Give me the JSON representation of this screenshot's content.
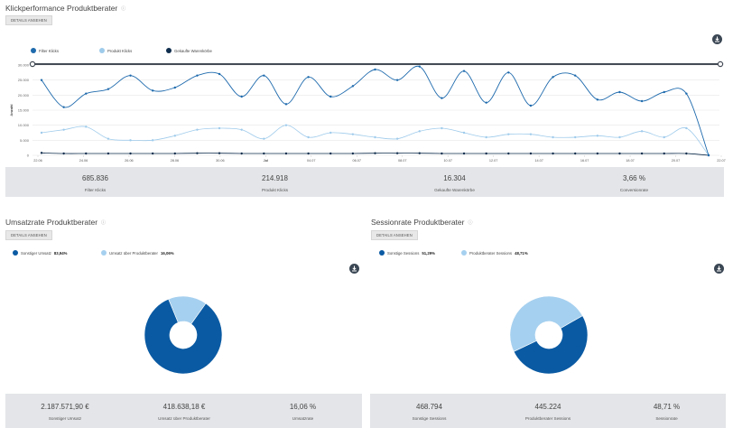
{
  "clicks": {
    "title": "Klickperformance Produktberater",
    "info": "ⓘ",
    "details_label": "DETAILS ANSEHEN",
    "legend": [
      {
        "label": "Filter Klicks",
        "color": "#1e6aad"
      },
      {
        "label": "Produkt Klicks",
        "color": "#9fcbeb"
      },
      {
        "label": "Gekaufte Warenkörbe",
        "color": "#0f2d4d"
      }
    ],
    "stats": [
      {
        "value": "685.836",
        "label": "Filter Klicks"
      },
      {
        "value": "214.918",
        "label": "Produkt Klicks"
      },
      {
        "value": "16.304",
        "label": "Gekaufte Warenkörbe"
      },
      {
        "value": "3,66 %",
        "label": "Conversionrate"
      }
    ]
  },
  "umsatz": {
    "title": "Umsatzrate Produktberater",
    "info": "ⓘ",
    "details_label": "DETAILS ANSEHEN",
    "legend": [
      {
        "label": "Sonstiger Umsatz",
        "pct": "83,94%",
        "color": "#0a5aa3"
      },
      {
        "label": "Umsatz über Produktberater",
        "pct": "16,06%",
        "color": "#a6d0ef"
      }
    ],
    "stats": [
      {
        "value": "2.187.571,90 €",
        "label": "Sonstiger Umsatz"
      },
      {
        "value": "418.638,18 €",
        "label": "Umsatz über Produktberater"
      },
      {
        "value": "16,06 %",
        "label": "Umsatzrate"
      }
    ]
  },
  "sessions": {
    "title": "Sessionrate Produktberater",
    "info": "ⓘ",
    "details_label": "DETAILS ANSEHEN",
    "legend": [
      {
        "label": "Sonstige Sessions",
        "pct": "51,29%",
        "color": "#0a5aa3"
      },
      {
        "label": "Produktberater Sessions",
        "pct": "48,71%",
        "color": "#a6d0ef"
      }
    ],
    "stats": [
      {
        "value": "468.794",
        "label": "Sonstige Sessions"
      },
      {
        "value": "445.224",
        "label": "Produktberater Sessions"
      },
      {
        "value": "48,71 %",
        "label": "Sessionrate"
      }
    ]
  },
  "chart_data": [
    {
      "type": "line",
      "ylabel": "Anzahl",
      "ylim": [
        0,
        30000
      ],
      "yticks": [
        "0",
        "5.000",
        "10.000",
        "15.000",
        "20.000",
        "25.000",
        "30.000"
      ],
      "x_tick_labels": [
        "22.06",
        "24.06",
        "26.06",
        "28.06",
        "30.06",
        "Jul",
        "04.07",
        "06.07",
        "08.07",
        "10.07",
        "12.07",
        "14.07",
        "16.07",
        "18.07",
        "20.07",
        "22.07"
      ],
      "grid": true,
      "series": [
        {
          "name": "Filter Klicks",
          "color": "#1e6aad",
          "values": [
            25000,
            16000,
            20500,
            22000,
            26500,
            21500,
            22500,
            26500,
            27000,
            19500,
            26500,
            17000,
            26000,
            19500,
            23000,
            28500,
            25000,
            29500,
            19000,
            28000,
            17500,
            27500,
            16500,
            26000,
            26500,
            18500,
            21000,
            18000,
            21000,
            20500,
            0
          ]
        },
        {
          "name": "Produkt Klicks",
          "color": "#9fcbeb",
          "values": [
            7500,
            8500,
            9500,
            5500,
            5000,
            5000,
            6500,
            8500,
            9000,
            8500,
            5500,
            10000,
            6000,
            7500,
            7000,
            6000,
            5500,
            8000,
            9000,
            7500,
            6000,
            7000,
            7000,
            6000,
            6000,
            6500,
            6000,
            8000,
            6000,
            9000,
            0
          ]
        },
        {
          "name": "Gekaufte Warenkörbe",
          "color": "#0f2d4d",
          "values": [
            800,
            600,
            600,
            600,
            600,
            600,
            600,
            700,
            700,
            600,
            600,
            600,
            600,
            600,
            600,
            700,
            700,
            700,
            600,
            600,
            600,
            600,
            600,
            600,
            600,
            600,
            600,
            600,
            600,
            600,
            0
          ]
        }
      ]
    },
    {
      "type": "pie",
      "title": "Umsatzrate Produktberater",
      "categories": [
        "Sonstiger Umsatz",
        "Umsatz über Produktberater"
      ],
      "values": [
        83.94,
        16.06
      ],
      "colors": [
        "#0a5aa3",
        "#a6d0ef"
      ]
    },
    {
      "type": "pie",
      "title": "Sessionrate Produktberater",
      "categories": [
        "Sonstige Sessions",
        "Produktberater Sessions"
      ],
      "values": [
        51.29,
        48.71
      ],
      "colors": [
        "#0a5aa3",
        "#a6d0ef"
      ]
    }
  ]
}
